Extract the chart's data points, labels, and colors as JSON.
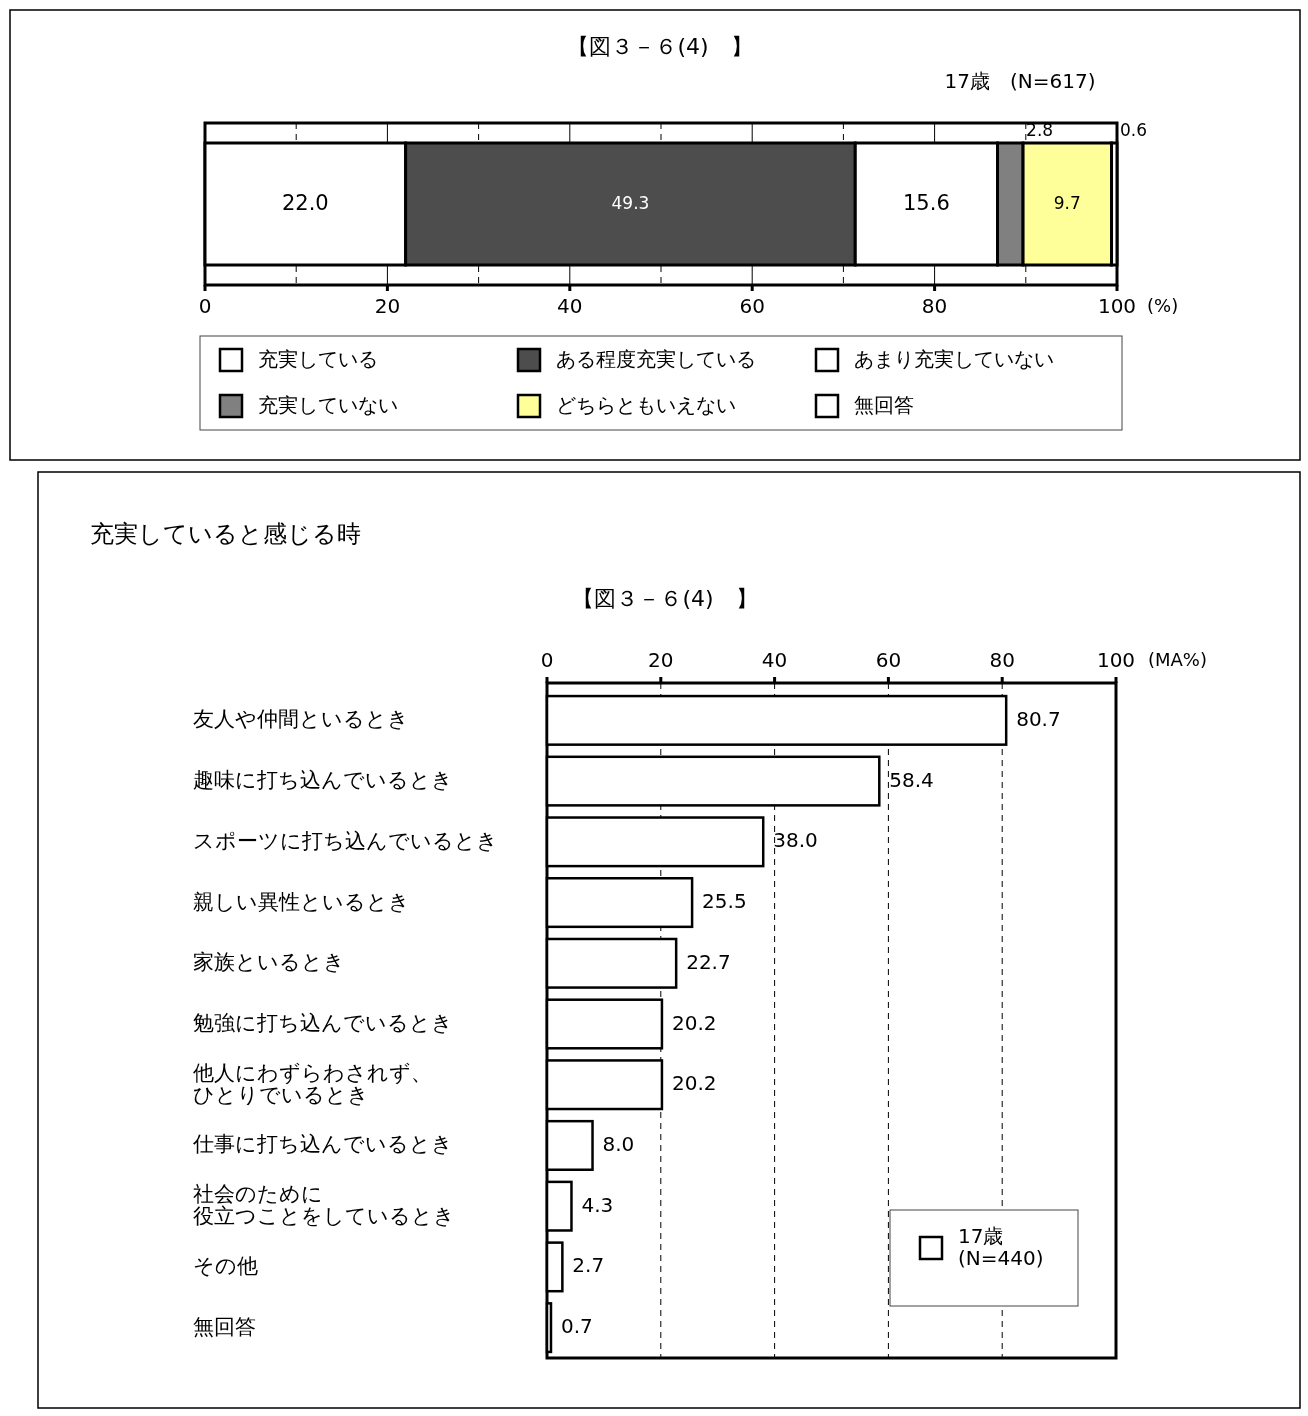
{
  "chart_data": [
    {
      "type": "bar",
      "orientation": "horizontal",
      "stacked": true,
      "title": "【図３－６(4)　】",
      "subtitle": "17歳　(N=617)",
      "xlabel": "(%)",
      "categories": [
        null
      ],
      "xlim": [
        0,
        100
      ],
      "xticks": [
        0,
        {
          "value": 10,
          "label": null
        },
        20,
        {
          "value": 30,
          "label": null
        },
        40,
        {
          "value": 50,
          "label": null
        },
        60,
        {
          "value": 70,
          "label": null
        },
        80,
        {
          "value": 90,
          "label": null
        },
        100
      ],
      "grid": "x",
      "legend": "bottom",
      "series": [
        {
          "name": "充実している",
          "color": "#ffffff",
          "values": [
            22.0
          ],
          "value_labels": [
            "22.0"
          ]
        },
        {
          "name": "ある程度充実している",
          "color": "#4d4d4d",
          "values": [
            49.3
          ],
          "value_labels": [
            "49.3"
          ]
        },
        {
          "name": "あまり充実していない",
          "color": "#ffffff",
          "values": [
            15.6
          ],
          "value_labels": [
            "15.6"
          ]
        },
        {
          "name": "充実していない",
          "color": "#808080",
          "values": [
            2.8
          ],
          "value_labels": [
            "2.8"
          ]
        },
        {
          "name": "どちらともいえない",
          "color": "#ffff99",
          "values": [
            9.7
          ],
          "value_labels": [
            "9.7"
          ]
        },
        {
          "name": "無回答",
          "color": "#ffffff",
          "values": [
            0.6
          ],
          "value_labels": [
            "0.6"
          ]
        }
      ]
    },
    {
      "type": "bar",
      "orientation": "horizontal",
      "title": "充実していると感じる時",
      "subtitle": "【図３－６(4)　】",
      "xlabel": "(MA%)",
      "categories": [
        "友人や仲間といるとき",
        "趣味に打ち込んでいるとき",
        "スポーツに打ち込んでいるとき",
        "親しい異性といるとき",
        "家族といるとき",
        "勉強に打ち込んでいるとき",
        "他人にわずらわされず、ひとりでいるとき",
        "仕事に打ち込んでいるとき",
        "社会のために役立つことをしているとき",
        "その他",
        "無回答"
      ],
      "xlim": [
        0,
        100
      ],
      "xticks": [
        0,
        20,
        40,
        60,
        80,
        100
      ],
      "grid": "x",
      "legend": "bottom right",
      "series": [
        {
          "name": "17歳\n(N=440)",
          "color": "#ffffff",
          "values": [
            80.7,
            58.4,
            38.0,
            25.5,
            22.7,
            20.2,
            20.2,
            8.0,
            4.3,
            2.7,
            0.7
          ],
          "value_labels": [
            "80.7",
            "58.4",
            "38.0",
            "25.5",
            "22.7",
            "20.2",
            "20.2",
            "8.0",
            "4.3",
            "2.7",
            "0.7"
          ]
        }
      ]
    }
  ]
}
